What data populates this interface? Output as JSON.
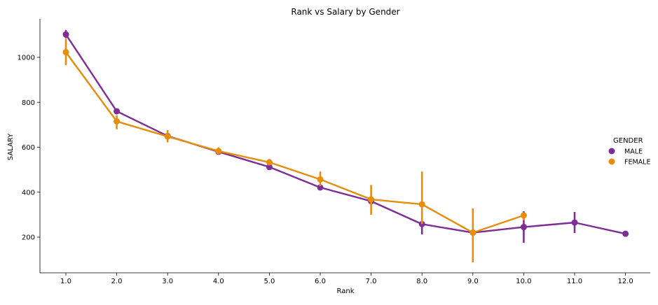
{
  "chart_data": {
    "type": "line",
    "title": "Rank vs Salary by Gender",
    "xlabel": "Rank",
    "ylabel": "SALARY",
    "categories": [
      "1.0",
      "2.0",
      "3.0",
      "4.0",
      "5.0",
      "6.0",
      "7.0",
      "8.0",
      "9.0",
      "10.0",
      "11.0",
      "12.0"
    ],
    "yticks": [
      200,
      400,
      600,
      800,
      1000
    ],
    "ylim": [
      40,
      1175
    ],
    "grid": false,
    "legend": {
      "title": "GENDER",
      "placement": "right"
    },
    "series": [
      {
        "name": "MALE",
        "color": "#7d2d96",
        "values": [
          1102,
          760,
          650,
          580,
          512,
          421,
          360,
          258,
          220,
          245,
          265,
          215
        ],
        "err_low": [
          1085,
          748,
          640,
          573,
          505,
          413,
          348,
          212,
          205,
          175,
          218,
          null
        ],
        "err_high": [
          1122,
          772,
          660,
          587,
          520,
          430,
          372,
          268,
          238,
          315,
          312,
          null
        ]
      },
      {
        "name": "FEMALE",
        "color": "#e68d0c",
        "values": [
          1023,
          715,
          648,
          583,
          533,
          457,
          368,
          346,
          220,
          297,
          null,
          null
        ],
        "err_low": [
          965,
          680,
          622,
          572,
          521,
          427,
          300,
          258,
          88,
          275,
          null,
          null
        ],
        "err_high": [
          1083,
          742,
          676,
          600,
          548,
          492,
          432,
          492,
          328,
          305,
          null,
          null
        ]
      }
    ]
  }
}
